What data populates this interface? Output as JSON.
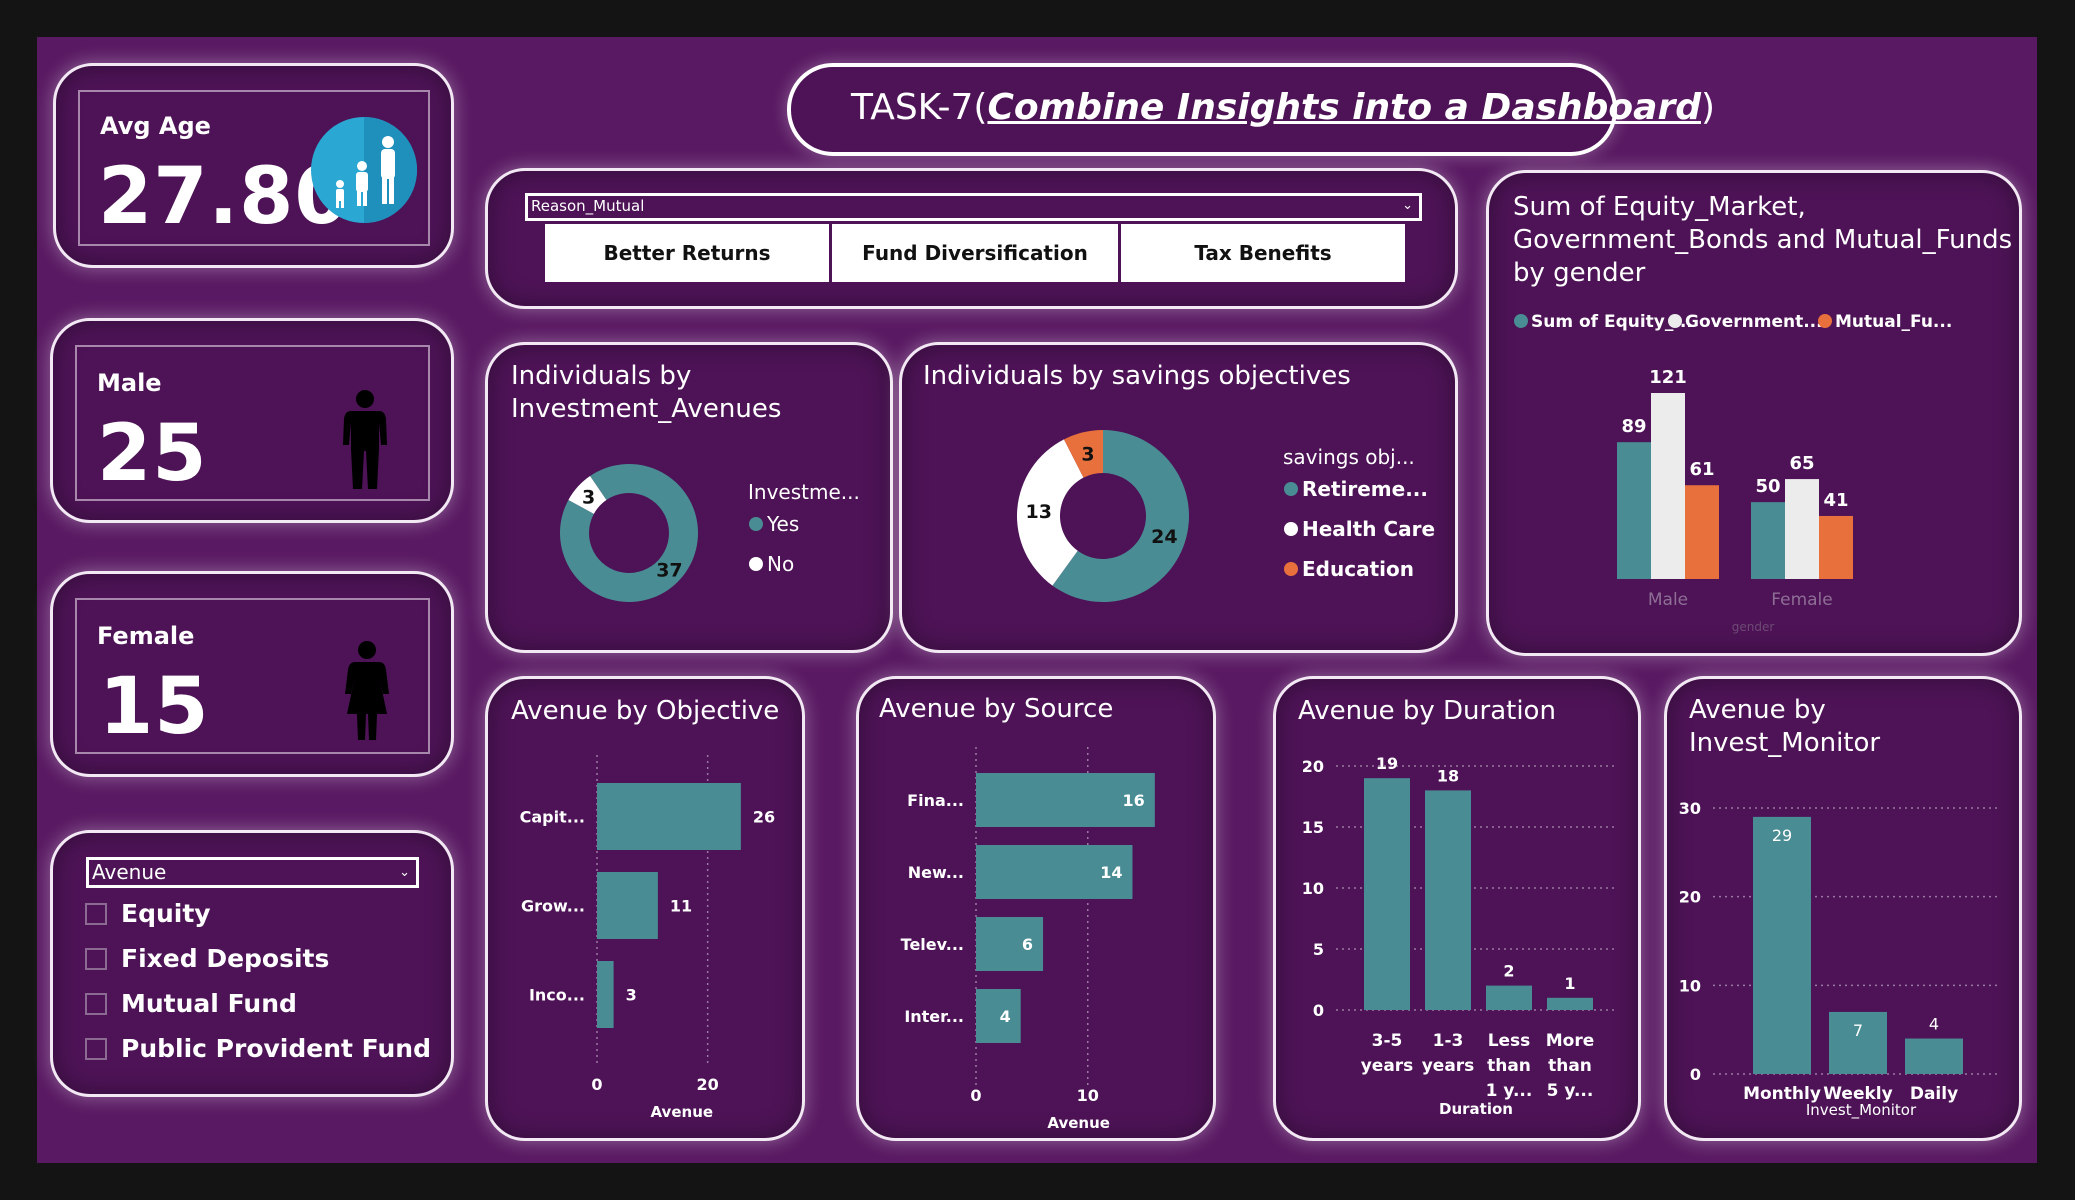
{
  "header": {
    "prefix": "TASK-7(",
    "emphasis": "Combine Insights into a Dashboard",
    "suffix": ")"
  },
  "kpis": {
    "avg_age": {
      "label": "Avg Age",
      "value": "27.80"
    },
    "male": {
      "label": "Male",
      "value": "25"
    },
    "female": {
      "label": "Female",
      "value": "15"
    }
  },
  "reason_slicer": {
    "header": "Reason_Mutual",
    "tiles": [
      "Better Returns",
      "Fund Diversification",
      "Tax Benefits"
    ]
  },
  "avenue_slicer": {
    "header": "Avenue",
    "options": [
      "Equity",
      "Fixed Deposits",
      "Mutual Fund",
      "Public Provident Fund"
    ]
  },
  "colors": {
    "teal": "#4a8c93",
    "white": "#ececec",
    "orange": "#e8703c",
    "card": "#4d1356",
    "page": "#5a1a63"
  },
  "icons": {
    "avg_age": "family-icon",
    "male": "man-icon",
    "female": "woman-icon"
  },
  "chart_data": [
    {
      "id": "investment_avenues",
      "type": "donut",
      "title": "Individuals by\nInvestment_Avenues",
      "legend_title": "Investme...",
      "slices": [
        {
          "label": "Yes",
          "value": 37,
          "color": "#4a8c93"
        },
        {
          "label": "No",
          "value": 3,
          "color": "#ffffff"
        }
      ]
    },
    {
      "id": "savings_objectives",
      "type": "donut",
      "title": "Individuals by savings objectives",
      "legend_title": "savings obj...",
      "slices": [
        {
          "label": "Retireme...",
          "value": 24,
          "color": "#4a8c93"
        },
        {
          "label": "Health Care",
          "value": 13,
          "color": "#ffffff"
        },
        {
          "label": "Education",
          "value": 3,
          "color": "#e8703c"
        }
      ]
    },
    {
      "id": "by_gender",
      "type": "bar",
      "title": "Sum of Equity_Market,\nGovernment_Bonds and Mutual_Funds\nby gender",
      "categories": [
        "Male",
        "Female"
      ],
      "series": [
        {
          "name": "Sum of Equity_...",
          "values": [
            89,
            50
          ],
          "color": "#4a8c93"
        },
        {
          "name": "Government...",
          "values": [
            121,
            65
          ],
          "color": "#ececec"
        },
        {
          "name": "Mutual_Fu...",
          "values": [
            61,
            41
          ],
          "color": "#e8703c"
        }
      ],
      "xlabel": "gender",
      "ylim": [
        0,
        121
      ]
    },
    {
      "id": "avenue_by_objective",
      "type": "bar",
      "orientation": "horizontal",
      "title": "Avenue by Objective",
      "categories": [
        "Capit...",
        "Grow...",
        "Inco..."
      ],
      "values": [
        26,
        11,
        3
      ],
      "xlabel": "Avenue",
      "xlim": [
        0,
        30
      ],
      "ticks": [
        0,
        20
      ]
    },
    {
      "id": "avenue_by_source",
      "type": "bar",
      "orientation": "horizontal",
      "title": "Avenue by Source",
      "categories": [
        "Fina...",
        "New...",
        "Telev...",
        "Inter..."
      ],
      "values": [
        16,
        14,
        6,
        4
      ],
      "xlabel": "Avenue",
      "xlim": [
        0,
        17
      ],
      "ticks": [
        0,
        10
      ]
    },
    {
      "id": "avenue_by_duration",
      "type": "bar",
      "title": "Avenue by Duration",
      "categories": [
        "3-5\nyears",
        "1-3\nyears",
        "Less\nthan\n1 y...",
        "More\nthan\n5 y..."
      ],
      "values": [
        19,
        18,
        2,
        1
      ],
      "xlabel": "Duration",
      "ylim": [
        0,
        20
      ],
      "ticks": [
        0,
        5,
        10,
        15,
        20
      ]
    },
    {
      "id": "avenue_by_invest_monitor",
      "type": "bar",
      "title": "Avenue by\nInvest_Monitor",
      "categories": [
        "Monthly",
        "Weekly",
        "Daily"
      ],
      "values": [
        29,
        7,
        4
      ],
      "xlabel": "Invest_Monitor",
      "ylim": [
        0,
        30
      ],
      "ticks": [
        0,
        10,
        20,
        30
      ]
    }
  ]
}
